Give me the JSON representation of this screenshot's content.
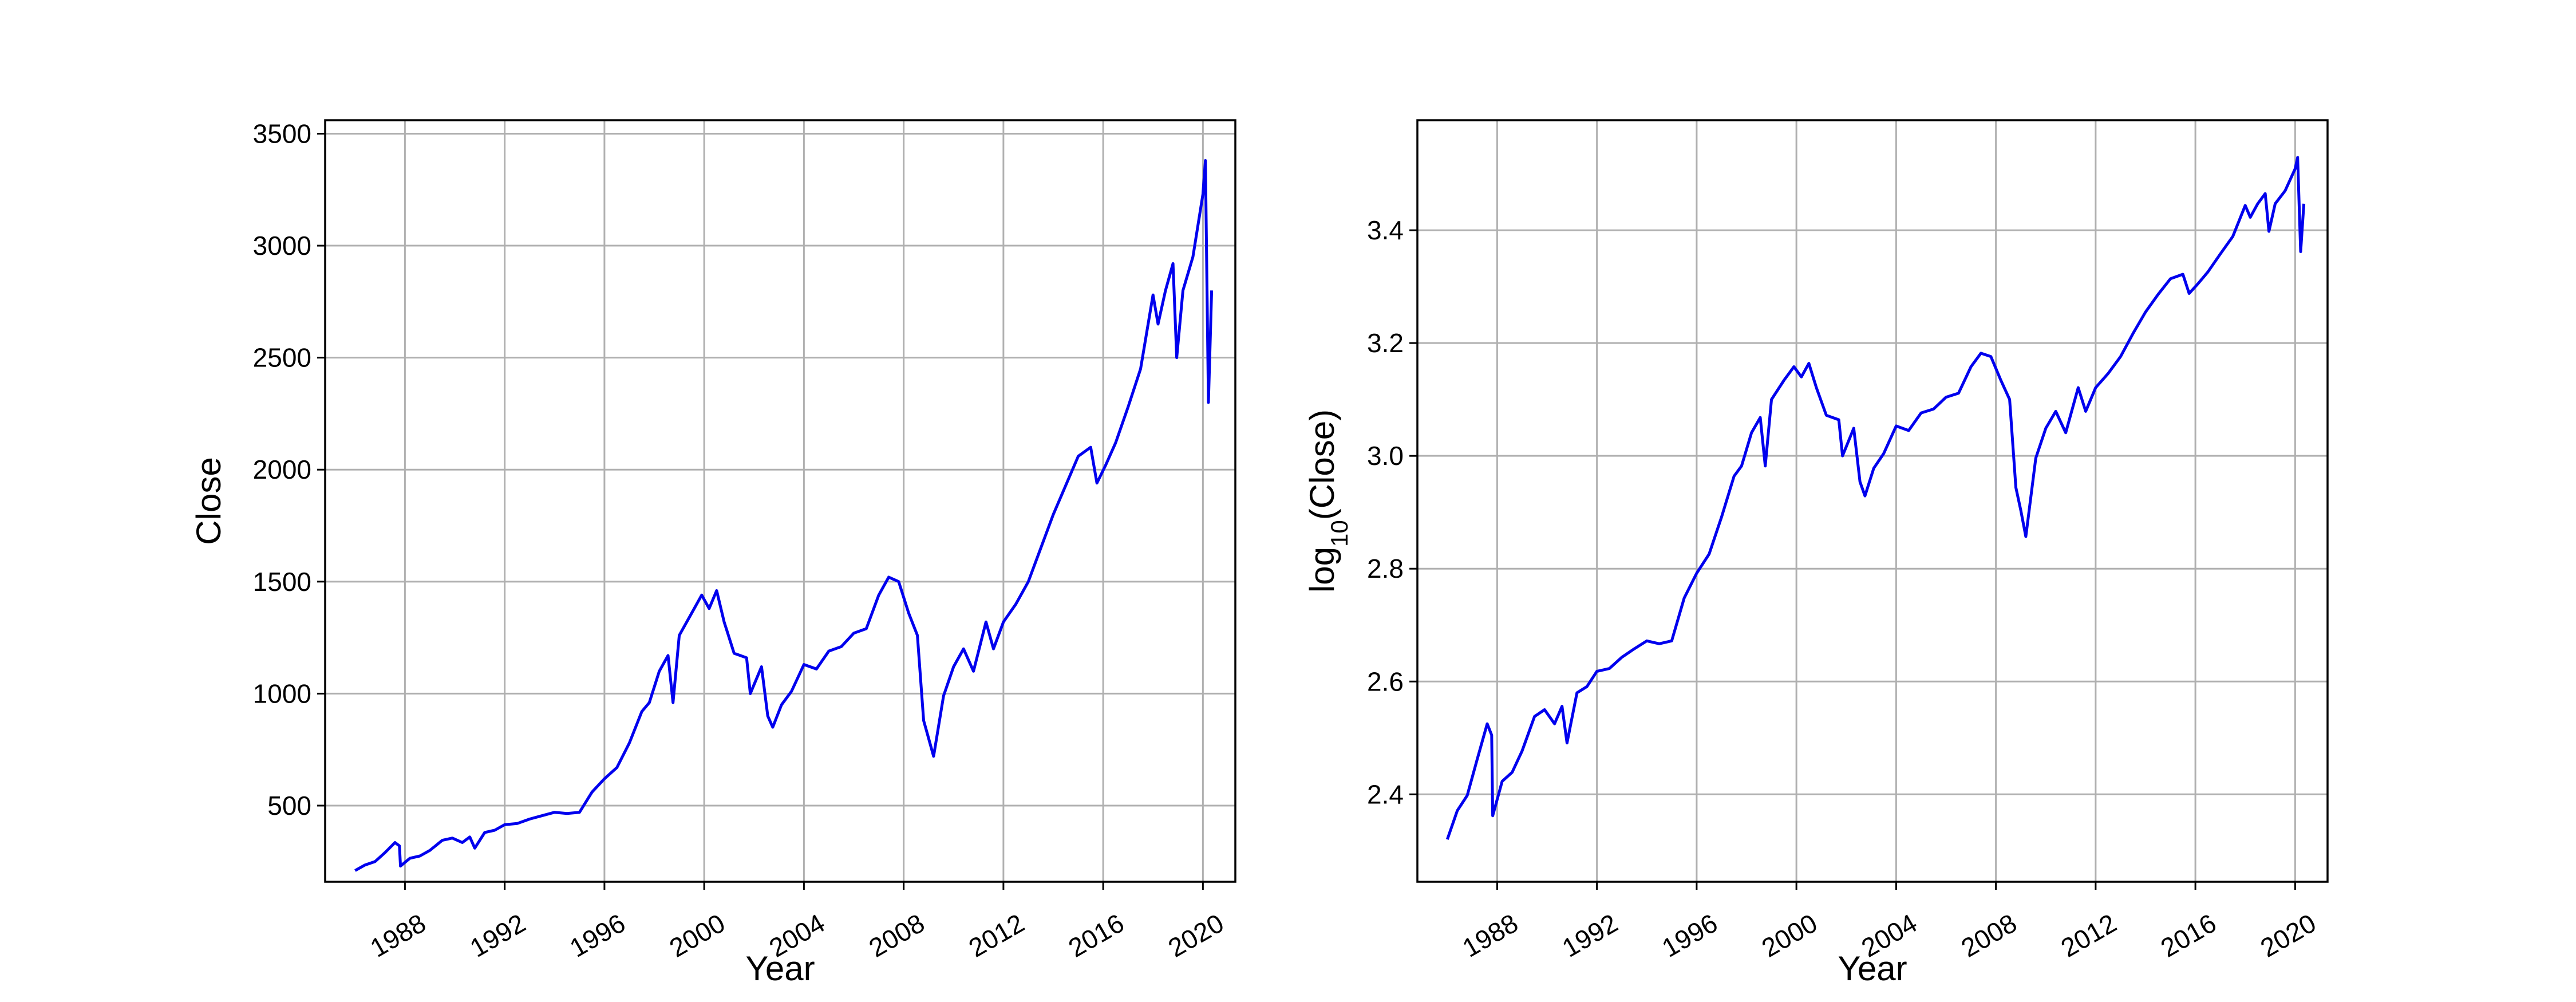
{
  "chart_data": [
    {
      "type": "line",
      "xlabel": "Year",
      "ylabel": "Close",
      "xlim": [
        1984.8,
        2021.3
      ],
      "ylim": [
        160,
        3560
      ],
      "xticks": [
        "1988",
        "1992",
        "1996",
        "2000",
        "2004",
        "2008",
        "2012",
        "2016",
        "2020"
      ],
      "yticks": [
        "500",
        "1000",
        "1500",
        "2000",
        "2500",
        "3000",
        "3500"
      ],
      "grid": true,
      "series": [
        {
          "color": "#0000ee",
          "x": [
            1986.0,
            1986.4,
            1986.8,
            1987.2,
            1987.6,
            1987.78,
            1987.82,
            1988.2,
            1988.6,
            1989.0,
            1989.5,
            1989.9,
            1990.3,
            1990.6,
            1990.8,
            1991.2,
            1991.6,
            1992.0,
            1992.5,
            1993.0,
            1993.5,
            1994.0,
            1994.5,
            1995.0,
            1995.5,
            1996.0,
            1996.5,
            1997.0,
            1997.5,
            1997.8,
            1998.2,
            1998.55,
            1998.75,
            1999.0,
            1999.5,
            1999.9,
            2000.2,
            2000.5,
            2000.8,
            2001.2,
            2001.7,
            2001.85,
            2002.3,
            2002.55,
            2002.75,
            2003.1,
            2003.5,
            2004.0,
            2004.5,
            2005.0,
            2005.5,
            2006.0,
            2006.5,
            2007.0,
            2007.4,
            2007.8,
            2008.2,
            2008.55,
            2008.8,
            2009.0,
            2009.2,
            2009.6,
            2010.0,
            2010.4,
            2010.8,
            2011.3,
            2011.6,
            2012.0,
            2012.5,
            2013.0,
            2013.5,
            2014.0,
            2014.5,
            2015.0,
            2015.5,
            2015.75,
            2016.1,
            2016.5,
            2017.0,
            2017.5,
            2018.0,
            2018.2,
            2018.5,
            2018.8,
            2018.95,
            2019.2,
            2019.6,
            2020.0,
            2020.1,
            2020.22,
            2020.35
          ],
          "y": [
            210,
            235,
            250,
            290,
            335,
            320,
            230,
            265,
            275,
            300,
            345,
            355,
            335,
            360,
            310,
            380,
            390,
            415,
            420,
            440,
            455,
            470,
            465,
            470,
            560,
            620,
            670,
            780,
            920,
            960,
            1100,
            1170,
            960,
            1260,
            1360,
            1440,
            1380,
            1460,
            1320,
            1180,
            1160,
            1000,
            1120,
            900,
            850,
            950,
            1010,
            1130,
            1110,
            1190,
            1210,
            1270,
            1290,
            1440,
            1520,
            1500,
            1360,
            1260,
            880,
            800,
            720,
            990,
            1120,
            1200,
            1100,
            1320,
            1200,
            1320,
            1400,
            1500,
            1650,
            1800,
            1930,
            2060,
            2100,
            1940,
            2020,
            2120,
            2280,
            2450,
            2780,
            2650,
            2800,
            2920,
            2500,
            2800,
            2950,
            3230,
            3380,
            2300,
            2800
          ]
        }
      ]
    },
    {
      "type": "line",
      "xlabel": "Year",
      "ylabel": "log10(Close)",
      "xlim": [
        1984.8,
        2021.3
      ],
      "ylim": [
        2.245,
        3.595
      ],
      "xticks": [
        "1988",
        "1992",
        "1996",
        "2000",
        "2004",
        "2008",
        "2012",
        "2016",
        "2020"
      ],
      "yticks": [
        "2.4",
        "2.6",
        "2.8",
        "3.0",
        "3.2",
        "3.4"
      ],
      "grid": true,
      "series": [
        {
          "color": "#0000ee",
          "x": [
            1986.0,
            1986.4,
            1986.8,
            1987.2,
            1987.6,
            1987.78,
            1987.82,
            1988.2,
            1988.6,
            1989.0,
            1989.5,
            1989.9,
            1990.3,
            1990.6,
            1990.8,
            1991.2,
            1991.6,
            1992.0,
            1992.5,
            1993.0,
            1993.5,
            1994.0,
            1994.5,
            1995.0,
            1995.5,
            1996.0,
            1996.5,
            1997.0,
            1997.5,
            1997.8,
            1998.2,
            1998.55,
            1998.75,
            1999.0,
            1999.5,
            1999.9,
            2000.2,
            2000.5,
            2000.8,
            2001.2,
            2001.7,
            2001.85,
            2002.3,
            2002.55,
            2002.75,
            2003.1,
            2003.5,
            2004.0,
            2004.5,
            2005.0,
            2005.5,
            2006.0,
            2006.5,
            2007.0,
            2007.4,
            2007.8,
            2008.2,
            2008.55,
            2008.8,
            2009.0,
            2009.2,
            2009.6,
            2010.0,
            2010.4,
            2010.8,
            2011.3,
            2011.6,
            2012.0,
            2012.5,
            2013.0,
            2013.5,
            2014.0,
            2014.5,
            2015.0,
            2015.5,
            2015.75,
            2016.1,
            2016.5,
            2017.0,
            2017.5,
            2018.0,
            2018.2,
            2018.5,
            2018.8,
            2018.95,
            2019.2,
            2019.6,
            2020.0,
            2020.1,
            2020.22,
            2020.35
          ],
          "y": [
            2.32,
            2.371,
            2.398,
            2.462,
            2.525,
            2.505,
            2.362,
            2.423,
            2.439,
            2.477,
            2.538,
            2.55,
            2.525,
            2.556,
            2.491,
            2.58,
            2.591,
            2.618,
            2.623,
            2.643,
            2.658,
            2.672,
            2.667,
            2.672,
            2.748,
            2.792,
            2.826,
            2.892,
            2.964,
            2.982,
            3.041,
            3.068,
            2.982,
            3.1,
            3.134,
            3.158,
            3.14,
            3.164,
            3.121,
            3.072,
            3.064,
            3.0,
            3.049,
            2.954,
            2.929,
            2.978,
            3.004,
            3.053,
            3.045,
            3.076,
            3.083,
            3.104,
            3.111,
            3.158,
            3.182,
            3.176,
            3.134,
            3.1,
            2.944,
            2.903,
            2.857,
            2.996,
            3.049,
            3.079,
            3.041,
            3.121,
            3.079,
            3.121,
            3.146,
            3.176,
            3.217,
            3.255,
            3.286,
            3.314,
            3.322,
            3.288,
            3.305,
            3.326,
            3.358,
            3.389,
            3.444,
            3.423,
            3.447,
            3.465,
            3.398,
            3.447,
            3.47,
            3.509,
            3.529,
            3.362,
            3.447
          ]
        }
      ]
    }
  ]
}
